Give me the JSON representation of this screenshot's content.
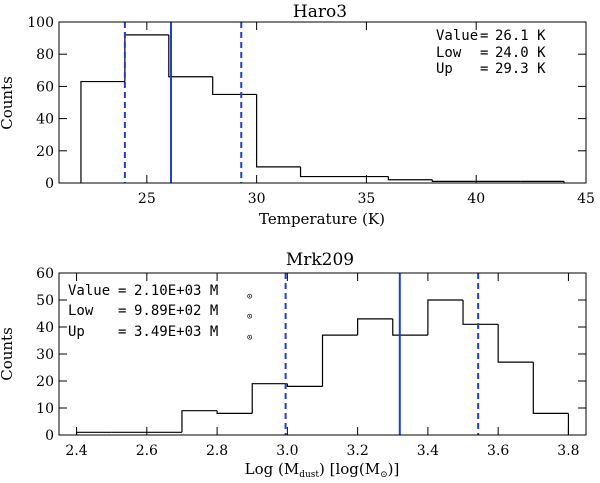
{
  "chart_data": [
    {
      "type": "histogram",
      "title": "Haro3",
      "xlabel": "Temperature (K)",
      "ylabel": "Counts",
      "xlim": [
        21,
        45
      ],
      "ylim": [
        0,
        100
      ],
      "xticks": [
        "25",
        "30",
        "35",
        "40",
        "45"
      ],
      "xtick_values": [
        25,
        30,
        35,
        40,
        45
      ],
      "yticks": [
        "0",
        "20",
        "40",
        "60",
        "80",
        "100"
      ],
      "ytick_values": [
        0,
        20,
        40,
        60,
        80,
        100
      ],
      "bin_edges": [
        22,
        24,
        26,
        28,
        30,
        32,
        34,
        36,
        38,
        40,
        42,
        44
      ],
      "counts": [
        63,
        92,
        66,
        55,
        10,
        4,
        4,
        2,
        1,
        1,
        1
      ],
      "value_line": 26.1,
      "low_line": 24.0,
      "up_line": 29.3,
      "line_color": "#1f3fcc",
      "annotation": [
        {
          "label": "Value",
          "eq": "=",
          "val": "26.1 K"
        },
        {
          "label": "Low",
          "eq": "=",
          "val": "24.0 K"
        },
        {
          "label": "Up",
          "eq": "=",
          "val": "29.3 K"
        }
      ],
      "annotation_position": "top-right"
    },
    {
      "type": "histogram",
      "title": "Mrk209",
      "xlabel_parts": [
        "Log (M",
        "dust",
        ") [log(M",
        ")]"
      ],
      "ylabel": "Counts",
      "xlim": [
        2.35,
        3.85
      ],
      "ylim": [
        0,
        60
      ],
      "xticks": [
        "2.4",
        "2.6",
        "2.8",
        "3.0",
        "3.2",
        "3.4",
        "3.6",
        "3.8"
      ],
      "xtick_values": [
        2.4,
        2.6,
        2.8,
        3.0,
        3.2,
        3.4,
        3.6,
        3.8
      ],
      "yticks": [
        "0",
        "10",
        "20",
        "30",
        "40",
        "50",
        "60"
      ],
      "ytick_values": [
        0,
        10,
        20,
        30,
        40,
        50,
        60
      ],
      "bin_edges": [
        2.4,
        2.5,
        2.6,
        2.7,
        2.8,
        2.9,
        3.0,
        3.1,
        3.2,
        3.3,
        3.4,
        3.5,
        3.6,
        3.7,
        3.8
      ],
      "counts": [
        1,
        1,
        1,
        9,
        8,
        19,
        18,
        37,
        43,
        37,
        50,
        41,
        27,
        8
      ],
      "value_line": 3.32,
      "low_line": 2.995,
      "up_line": 3.543,
      "line_color": "#1f3fcc",
      "annotation": [
        {
          "label": "Value",
          "eq": "=",
          "val": "2.10E+03 M"
        },
        {
          "label": "Low",
          "eq": "=",
          "val": "9.89E+02 M"
        },
        {
          "label": "Up",
          "eq": "=",
          "val": "3.49E+03 M"
        }
      ],
      "annotation_position": "top-left"
    }
  ]
}
